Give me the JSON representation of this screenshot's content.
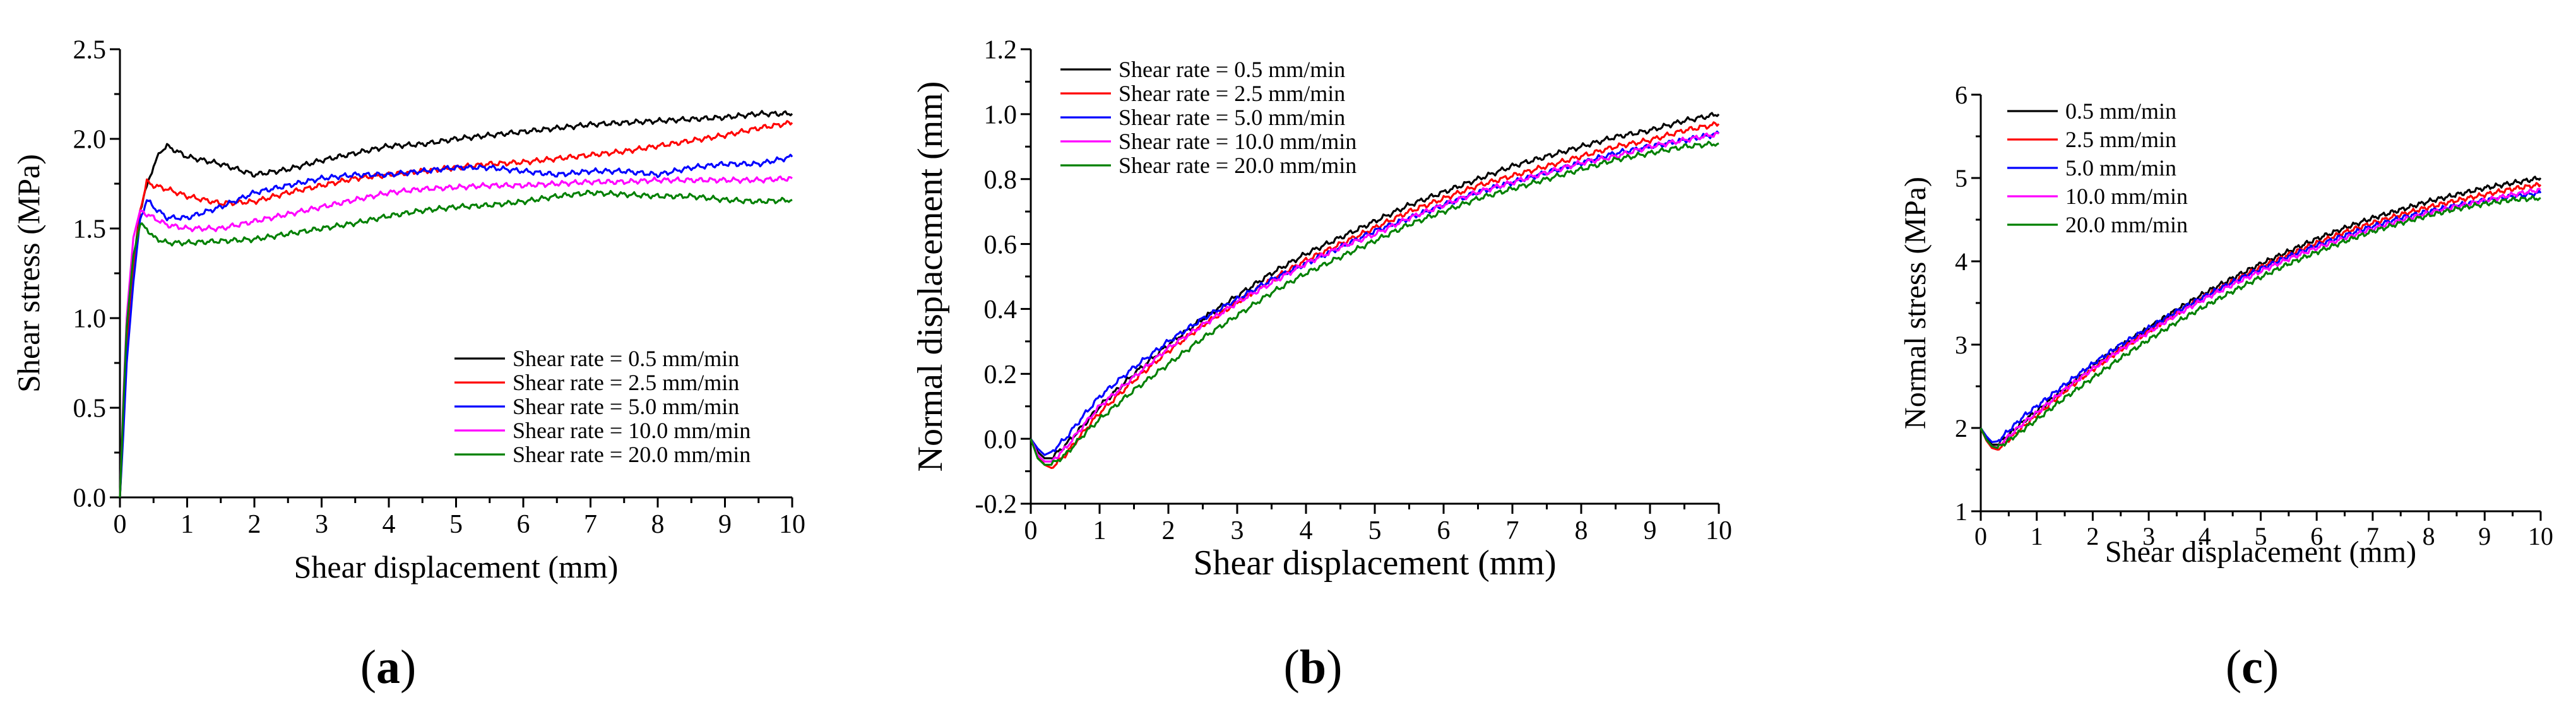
{
  "chart_data": [
    {
      "type": "line",
      "panel_label": "(a)",
      "xlabel": "Shear displacement (mm)",
      "ylabel": "Shear stress (MPa)",
      "xlim": [
        0,
        10
      ],
      "ylim": [
        0.0,
        2.5
      ],
      "xticks": [
        "0",
        "1",
        "2",
        "3",
        "4",
        "5",
        "6",
        "7",
        "8",
        "9",
        "10"
      ],
      "yticks": [
        "0.0",
        "0.5",
        "1.0",
        "1.5",
        "2.0",
        "2.5"
      ],
      "legend_position": "lower-right",
      "series": [
        {
          "name": "Shear rate = 0.5 mm/min",
          "color": "#000000",
          "x": [
            0,
            0.05,
            0.1,
            0.2,
            0.3,
            0.45,
            0.6,
            0.7,
            0.8,
            1,
            1.5,
            2,
            2.5,
            3,
            3.5,
            4,
            4.5,
            5,
            5.5,
            6,
            6.5,
            7,
            7.5,
            8,
            8.5,
            9,
            9.5,
            10
          ],
          "y": [
            0,
            0.45,
            0.85,
            1.3,
            1.6,
            1.8,
            1.93,
            1.96,
            1.94,
            1.9,
            1.86,
            1.8,
            1.83,
            1.88,
            1.92,
            1.96,
            1.97,
            2.0,
            2.02,
            2.04,
            2.06,
            2.08,
            2.09,
            2.1,
            2.11,
            2.12,
            2.14,
            2.14
          ]
        },
        {
          "name": "Shear rate = 2.5 mm/min",
          "color": "#ff0000",
          "x": [
            0,
            0.05,
            0.1,
            0.2,
            0.3,
            0.4,
            0.5,
            0.7,
            1,
            1.5,
            2,
            2.5,
            3,
            3.5,
            4,
            4.5,
            5,
            5.5,
            6,
            6.5,
            7,
            7.5,
            8,
            8.5,
            9,
            9.5,
            10
          ],
          "y": [
            0,
            0.4,
            0.8,
            1.25,
            1.6,
            1.76,
            1.74,
            1.72,
            1.68,
            1.64,
            1.65,
            1.7,
            1.74,
            1.78,
            1.8,
            1.82,
            1.84,
            1.86,
            1.87,
            1.89,
            1.91,
            1.93,
            1.96,
            1.99,
            2.02,
            2.06,
            2.09
          ]
        },
        {
          "name": "Shear rate = 5.0 mm/min",
          "color": "#0000ff",
          "x": [
            0,
            0.05,
            0.1,
            0.2,
            0.3,
            0.4,
            0.5,
            0.7,
            1,
            1.5,
            2,
            2.5,
            3,
            3.5,
            4,
            4.5,
            5,
            5.5,
            6,
            6.5,
            7,
            7.5,
            8,
            8.5,
            9,
            9.5,
            10
          ],
          "y": [
            0,
            0.35,
            0.75,
            1.2,
            1.55,
            1.66,
            1.62,
            1.56,
            1.56,
            1.62,
            1.7,
            1.74,
            1.78,
            1.8,
            1.8,
            1.82,
            1.84,
            1.84,
            1.82,
            1.8,
            1.82,
            1.82,
            1.8,
            1.84,
            1.86,
            1.86,
            1.9
          ]
        },
        {
          "name": "Shear rate = 10.0 mm/min",
          "color": "#ff00ff",
          "x": [
            0,
            0.05,
            0.1,
            0.2,
            0.3,
            0.4,
            0.5,
            0.7,
            1,
            1.5,
            2,
            2.5,
            3,
            3.5,
            4,
            4.5,
            5,
            5.5,
            6,
            6.5,
            7,
            7.5,
            8,
            8.5,
            9,
            9.5,
            10
          ],
          "y": [
            0,
            0.55,
            1.0,
            1.45,
            1.6,
            1.58,
            1.56,
            1.52,
            1.5,
            1.5,
            1.54,
            1.58,
            1.62,
            1.66,
            1.7,
            1.72,
            1.73,
            1.74,
            1.74,
            1.75,
            1.76,
            1.76,
            1.77,
            1.77,
            1.77,
            1.77,
            1.78
          ]
        },
        {
          "name": "Shear rate = 20.0 mm/min",
          "color": "#008000",
          "x": [
            0,
            0.05,
            0.1,
            0.2,
            0.3,
            0.4,
            0.5,
            0.7,
            1,
            1.5,
            2,
            2.5,
            3,
            3.5,
            4,
            4.5,
            5,
            5.5,
            6,
            6.5,
            7,
            7.5,
            8,
            8.5,
            9,
            9.5,
            10
          ],
          "y": [
            0,
            0.5,
            0.95,
            1.35,
            1.52,
            1.5,
            1.45,
            1.42,
            1.42,
            1.43,
            1.44,
            1.47,
            1.5,
            1.53,
            1.57,
            1.6,
            1.62,
            1.63,
            1.65,
            1.68,
            1.7,
            1.69,
            1.68,
            1.68,
            1.66,
            1.65,
            1.66
          ]
        }
      ]
    },
    {
      "type": "line",
      "panel_label": "(b)",
      "xlabel": "Shear displacement (mm)",
      "ylabel": "Normal displacement (mm)",
      "xlim": [
        0,
        10
      ],
      "ylim": [
        -0.2,
        1.2
      ],
      "xticks": [
        "0",
        "1",
        "2",
        "3",
        "4",
        "5",
        "6",
        "7",
        "8",
        "9",
        "10"
      ],
      "yticks": [
        "-0.2",
        "0.0",
        "0.2",
        "0.4",
        "0.6",
        "0.8",
        "1.0",
        "1.2"
      ],
      "legend_position": "upper-left",
      "series": [
        {
          "name": "Shear rate = 0.5 mm/min",
          "color": "#000000",
          "x": [
            0,
            0.1,
            0.2,
            0.3,
            0.5,
            0.8,
            1,
            1.5,
            2,
            2.5,
            3,
            3.5,
            4,
            4.5,
            5,
            5.5,
            6,
            6.5,
            7,
            7.5,
            8,
            8.5,
            9,
            9.5,
            10
          ],
          "y": [
            0,
            -0.04,
            -0.06,
            -0.06,
            -0.02,
            0.05,
            0.1,
            0.2,
            0.29,
            0.37,
            0.44,
            0.51,
            0.57,
            0.62,
            0.67,
            0.72,
            0.76,
            0.8,
            0.84,
            0.87,
            0.9,
            0.93,
            0.95,
            0.98,
            1.0
          ]
        },
        {
          "name": "Shear rate = 2.5 mm/min",
          "color": "#ff0000",
          "x": [
            0,
            0.1,
            0.2,
            0.3,
            0.5,
            0.8,
            1,
            1.5,
            2,
            2.5,
            3,
            3.5,
            4,
            4.5,
            5,
            5.5,
            6,
            6.5,
            7,
            7.5,
            8,
            8.5,
            9,
            9.5,
            10
          ],
          "y": [
            0,
            -0.05,
            -0.08,
            -0.09,
            -0.05,
            0.03,
            0.08,
            0.18,
            0.27,
            0.35,
            0.42,
            0.49,
            0.55,
            0.6,
            0.65,
            0.7,
            0.74,
            0.78,
            0.81,
            0.84,
            0.87,
            0.9,
            0.92,
            0.95,
            0.97
          ]
        },
        {
          "name": "Shear rate = 5.0 mm/min",
          "color": "#0000ff",
          "x": [
            0,
            0.1,
            0.2,
            0.3,
            0.5,
            0.8,
            1,
            1.5,
            2,
            2.5,
            3,
            3.5,
            4,
            4.5,
            5,
            5.5,
            6,
            6.5,
            7,
            7.5,
            8,
            8.5,
            9,
            9.5,
            10
          ],
          "y": [
            0,
            -0.03,
            -0.05,
            -0.04,
            0.0,
            0.08,
            0.13,
            0.22,
            0.3,
            0.37,
            0.43,
            0.49,
            0.54,
            0.59,
            0.64,
            0.68,
            0.72,
            0.76,
            0.79,
            0.82,
            0.85,
            0.88,
            0.9,
            0.92,
            0.94
          ]
        },
        {
          "name": "Shear rate = 10.0 mm/min",
          "color": "#ff00ff",
          "x": [
            0,
            0.1,
            0.2,
            0.3,
            0.5,
            0.8,
            1,
            1.5,
            2,
            2.5,
            3,
            3.5,
            4,
            4.5,
            5,
            5.5,
            6,
            6.5,
            7,
            7.5,
            8,
            8.5,
            9,
            9.5,
            10
          ],
          "y": [
            0,
            -0.05,
            -0.07,
            -0.07,
            -0.03,
            0.05,
            0.1,
            0.19,
            0.28,
            0.35,
            0.42,
            0.48,
            0.54,
            0.59,
            0.63,
            0.68,
            0.72,
            0.76,
            0.79,
            0.82,
            0.85,
            0.87,
            0.9,
            0.92,
            0.94
          ]
        },
        {
          "name": "Shear rate = 20.0 mm/min",
          "color": "#008000",
          "x": [
            0,
            0.1,
            0.2,
            0.3,
            0.5,
            0.8,
            1,
            1.5,
            2,
            2.5,
            3,
            3.5,
            4,
            4.5,
            5,
            5.5,
            6,
            6.5,
            7,
            7.5,
            8,
            8.5,
            9,
            9.5,
            10
          ],
          "y": [
            0,
            -0.06,
            -0.08,
            -0.08,
            -0.05,
            0.02,
            0.06,
            0.15,
            0.23,
            0.31,
            0.38,
            0.45,
            0.51,
            0.56,
            0.61,
            0.66,
            0.7,
            0.74,
            0.77,
            0.8,
            0.83,
            0.86,
            0.88,
            0.9,
            0.91
          ]
        }
      ]
    },
    {
      "type": "line",
      "panel_label": "(c)",
      "xlabel": "Shear displacement (mm)",
      "ylabel": "Normal stress (MPa)",
      "xlim": [
        0,
        10
      ],
      "ylim": [
        1,
        6
      ],
      "xticks": [
        "0",
        "1",
        "2",
        "3",
        "4",
        "5",
        "6",
        "7",
        "8",
        "9",
        "10"
      ],
      "yticks": [
        "1",
        "2",
        "3",
        "4",
        "5",
        "6"
      ],
      "legend_position": "upper-left",
      "series": [
        {
          "name": "0.5 mm/min",
          "color": "#000000",
          "x": [
            0,
            0.1,
            0.2,
            0.3,
            0.5,
            0.8,
            1,
            1.5,
            2,
            2.5,
            3,
            3.5,
            4,
            4.5,
            5,
            5.5,
            6,
            6.5,
            7,
            7.5,
            8,
            8.5,
            9,
            9.5,
            10
          ],
          "y": [
            2.0,
            1.88,
            1.8,
            1.8,
            1.92,
            2.1,
            2.2,
            2.48,
            2.75,
            2.98,
            3.2,
            3.42,
            3.62,
            3.8,
            3.97,
            4.12,
            4.27,
            4.4,
            4.52,
            4.62,
            4.72,
            4.8,
            4.88,
            4.94,
            5.0
          ]
        },
        {
          "name": "2.5 mm/min",
          "color": "#ff0000",
          "x": [
            0,
            0.1,
            0.2,
            0.3,
            0.5,
            0.8,
            1,
            1.5,
            2,
            2.5,
            3,
            3.5,
            4,
            4.5,
            5,
            5.5,
            6,
            6.5,
            7,
            7.5,
            8,
            8.5,
            9,
            9.5,
            10
          ],
          "y": [
            2.0,
            1.85,
            1.76,
            1.74,
            1.86,
            2.04,
            2.15,
            2.44,
            2.7,
            2.94,
            3.16,
            3.38,
            3.58,
            3.76,
            3.93,
            4.08,
            4.22,
            4.35,
            4.46,
            4.56,
            4.65,
            4.73,
            4.8,
            4.87,
            4.92
          ]
        },
        {
          "name": "5.0 mm/min",
          "color": "#0000ff",
          "x": [
            0,
            0.1,
            0.2,
            0.3,
            0.5,
            0.8,
            1,
            1.5,
            2,
            2.5,
            3,
            3.5,
            4,
            4.5,
            5,
            5.5,
            6,
            6.5,
            7,
            7.5,
            8,
            8.5,
            9,
            9.5,
            10
          ],
          "y": [
            2.0,
            1.9,
            1.83,
            1.84,
            1.97,
            2.16,
            2.26,
            2.52,
            2.77,
            3.0,
            3.2,
            3.4,
            3.58,
            3.75,
            3.91,
            4.06,
            4.19,
            4.31,
            4.42,
            4.52,
            4.6,
            4.67,
            4.73,
            4.78,
            4.82
          ]
        },
        {
          "name": "10.0 mm/min",
          "color": "#ff00ff",
          "x": [
            0,
            0.1,
            0.2,
            0.3,
            0.5,
            0.8,
            1,
            1.5,
            2,
            2.5,
            3,
            3.5,
            4,
            4.5,
            5,
            5.5,
            6,
            6.5,
            7,
            7.5,
            8,
            8.5,
            9,
            9.5,
            10
          ],
          "y": [
            2.0,
            1.86,
            1.78,
            1.77,
            1.9,
            2.08,
            2.18,
            2.46,
            2.71,
            2.94,
            3.15,
            3.36,
            3.55,
            3.72,
            3.88,
            4.03,
            4.16,
            4.28,
            4.39,
            4.49,
            4.58,
            4.66,
            4.73,
            4.8,
            4.86
          ]
        },
        {
          "name": "20.0 mm/min",
          "color": "#008000",
          "x": [
            0,
            0.1,
            0.2,
            0.3,
            0.5,
            0.8,
            1,
            1.5,
            2,
            2.5,
            3,
            3.5,
            4,
            4.5,
            5,
            5.5,
            6,
            6.5,
            7,
            7.5,
            8,
            8.5,
            9,
            9.5,
            10
          ],
          "y": [
            2.0,
            1.86,
            1.78,
            1.76,
            1.85,
            2.0,
            2.1,
            2.36,
            2.6,
            2.84,
            3.06,
            3.27,
            3.46,
            3.64,
            3.81,
            3.97,
            4.11,
            4.24,
            4.36,
            4.46,
            4.55,
            4.63,
            4.69,
            4.74,
            4.76
          ]
        }
      ]
    }
  ]
}
